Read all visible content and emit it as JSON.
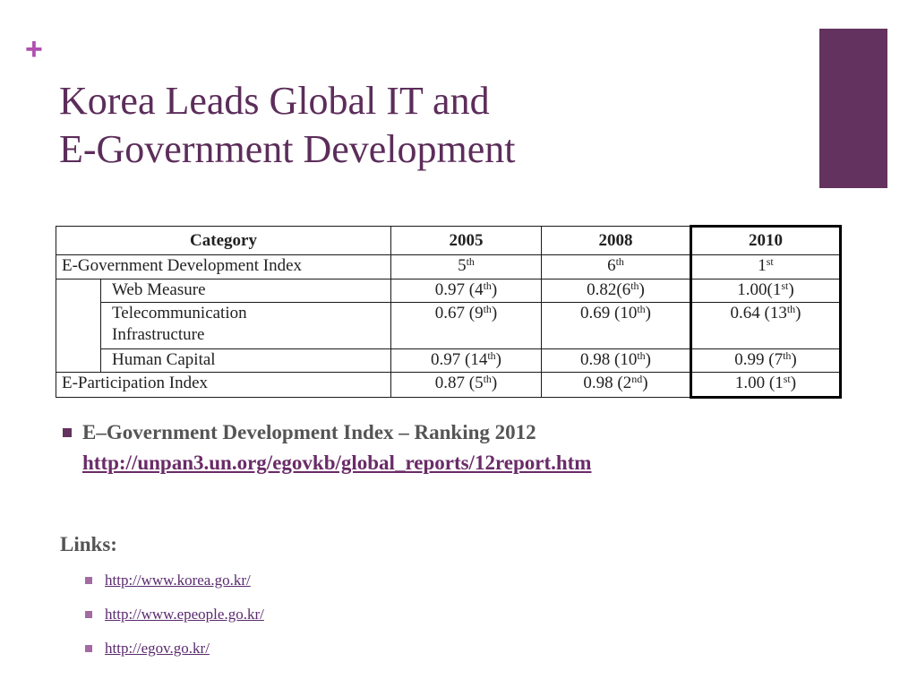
{
  "slide": {
    "plus_glyph": "+",
    "title_line1": "Korea Leads Global IT and",
    "title_line2": "E-Government Development"
  },
  "table": {
    "headers": [
      "Category",
      "2005",
      "2008",
      "2010"
    ],
    "rows": [
      {
        "label": "E-Government Development Index",
        "c2005": "5",
        "c2005_sup": "th",
        "c2008": "6",
        "c2008_sup": "th",
        "c2010": "1",
        "c2010_sup": "st"
      },
      {
        "label": "Web Measure",
        "c2005": "0.97 (4",
        "c2005_sup": "th",
        "c2005_end": ")",
        "c2008": "0.82(6",
        "c2008_sup": "th",
        "c2008_end": ")",
        "c2010": "1.00(1",
        "c2010_sup": "st",
        "c2010_end": ")"
      },
      {
        "label_line1": "Telecommunication",
        "label_line2": "Infrastructure",
        "c2005": "0.67 (9",
        "c2005_sup": "th",
        "c2005_end": ")",
        "c2008": "0.69 (10",
        "c2008_sup": "th",
        "c2008_end": ")",
        "c2010": "0.64 (13",
        "c2010_sup": "th",
        "c2010_end": ")"
      },
      {
        "label": "Human Capital",
        "c2005": "0.97 (14",
        "c2005_sup": "th",
        "c2005_end": ")",
        "c2008": "0.98 (10",
        "c2008_sup": "th",
        "c2008_end": ")",
        "c2010": "0.99 (7",
        "c2010_sup": "th",
        "c2010_end": ")"
      },
      {
        "label": "E-Participation Index",
        "c2005": "0.87 (5",
        "c2005_sup": "th",
        "c2005_end": ")",
        "c2008": "0.98 (2",
        "c2008_sup": "nd",
        "c2008_end": ")",
        "c2010": "1.00 (1",
        "c2010_sup": "st",
        "c2010_end": ")"
      }
    ]
  },
  "bullet": {
    "text": "E–Government Development Index – Ranking 2012",
    "url": "http://unpan3.un.org/egovkb/global_reports/12report.htm"
  },
  "links": {
    "label": "Links:",
    "items": [
      "http://www.korea.go.kr/",
      "http://www.epeople.go.kr/",
      "http://egov.go.kr/"
    ]
  },
  "colors": {
    "accent": "#64325f",
    "title": "#5c2d5a",
    "plus": "#b04fb0"
  }
}
